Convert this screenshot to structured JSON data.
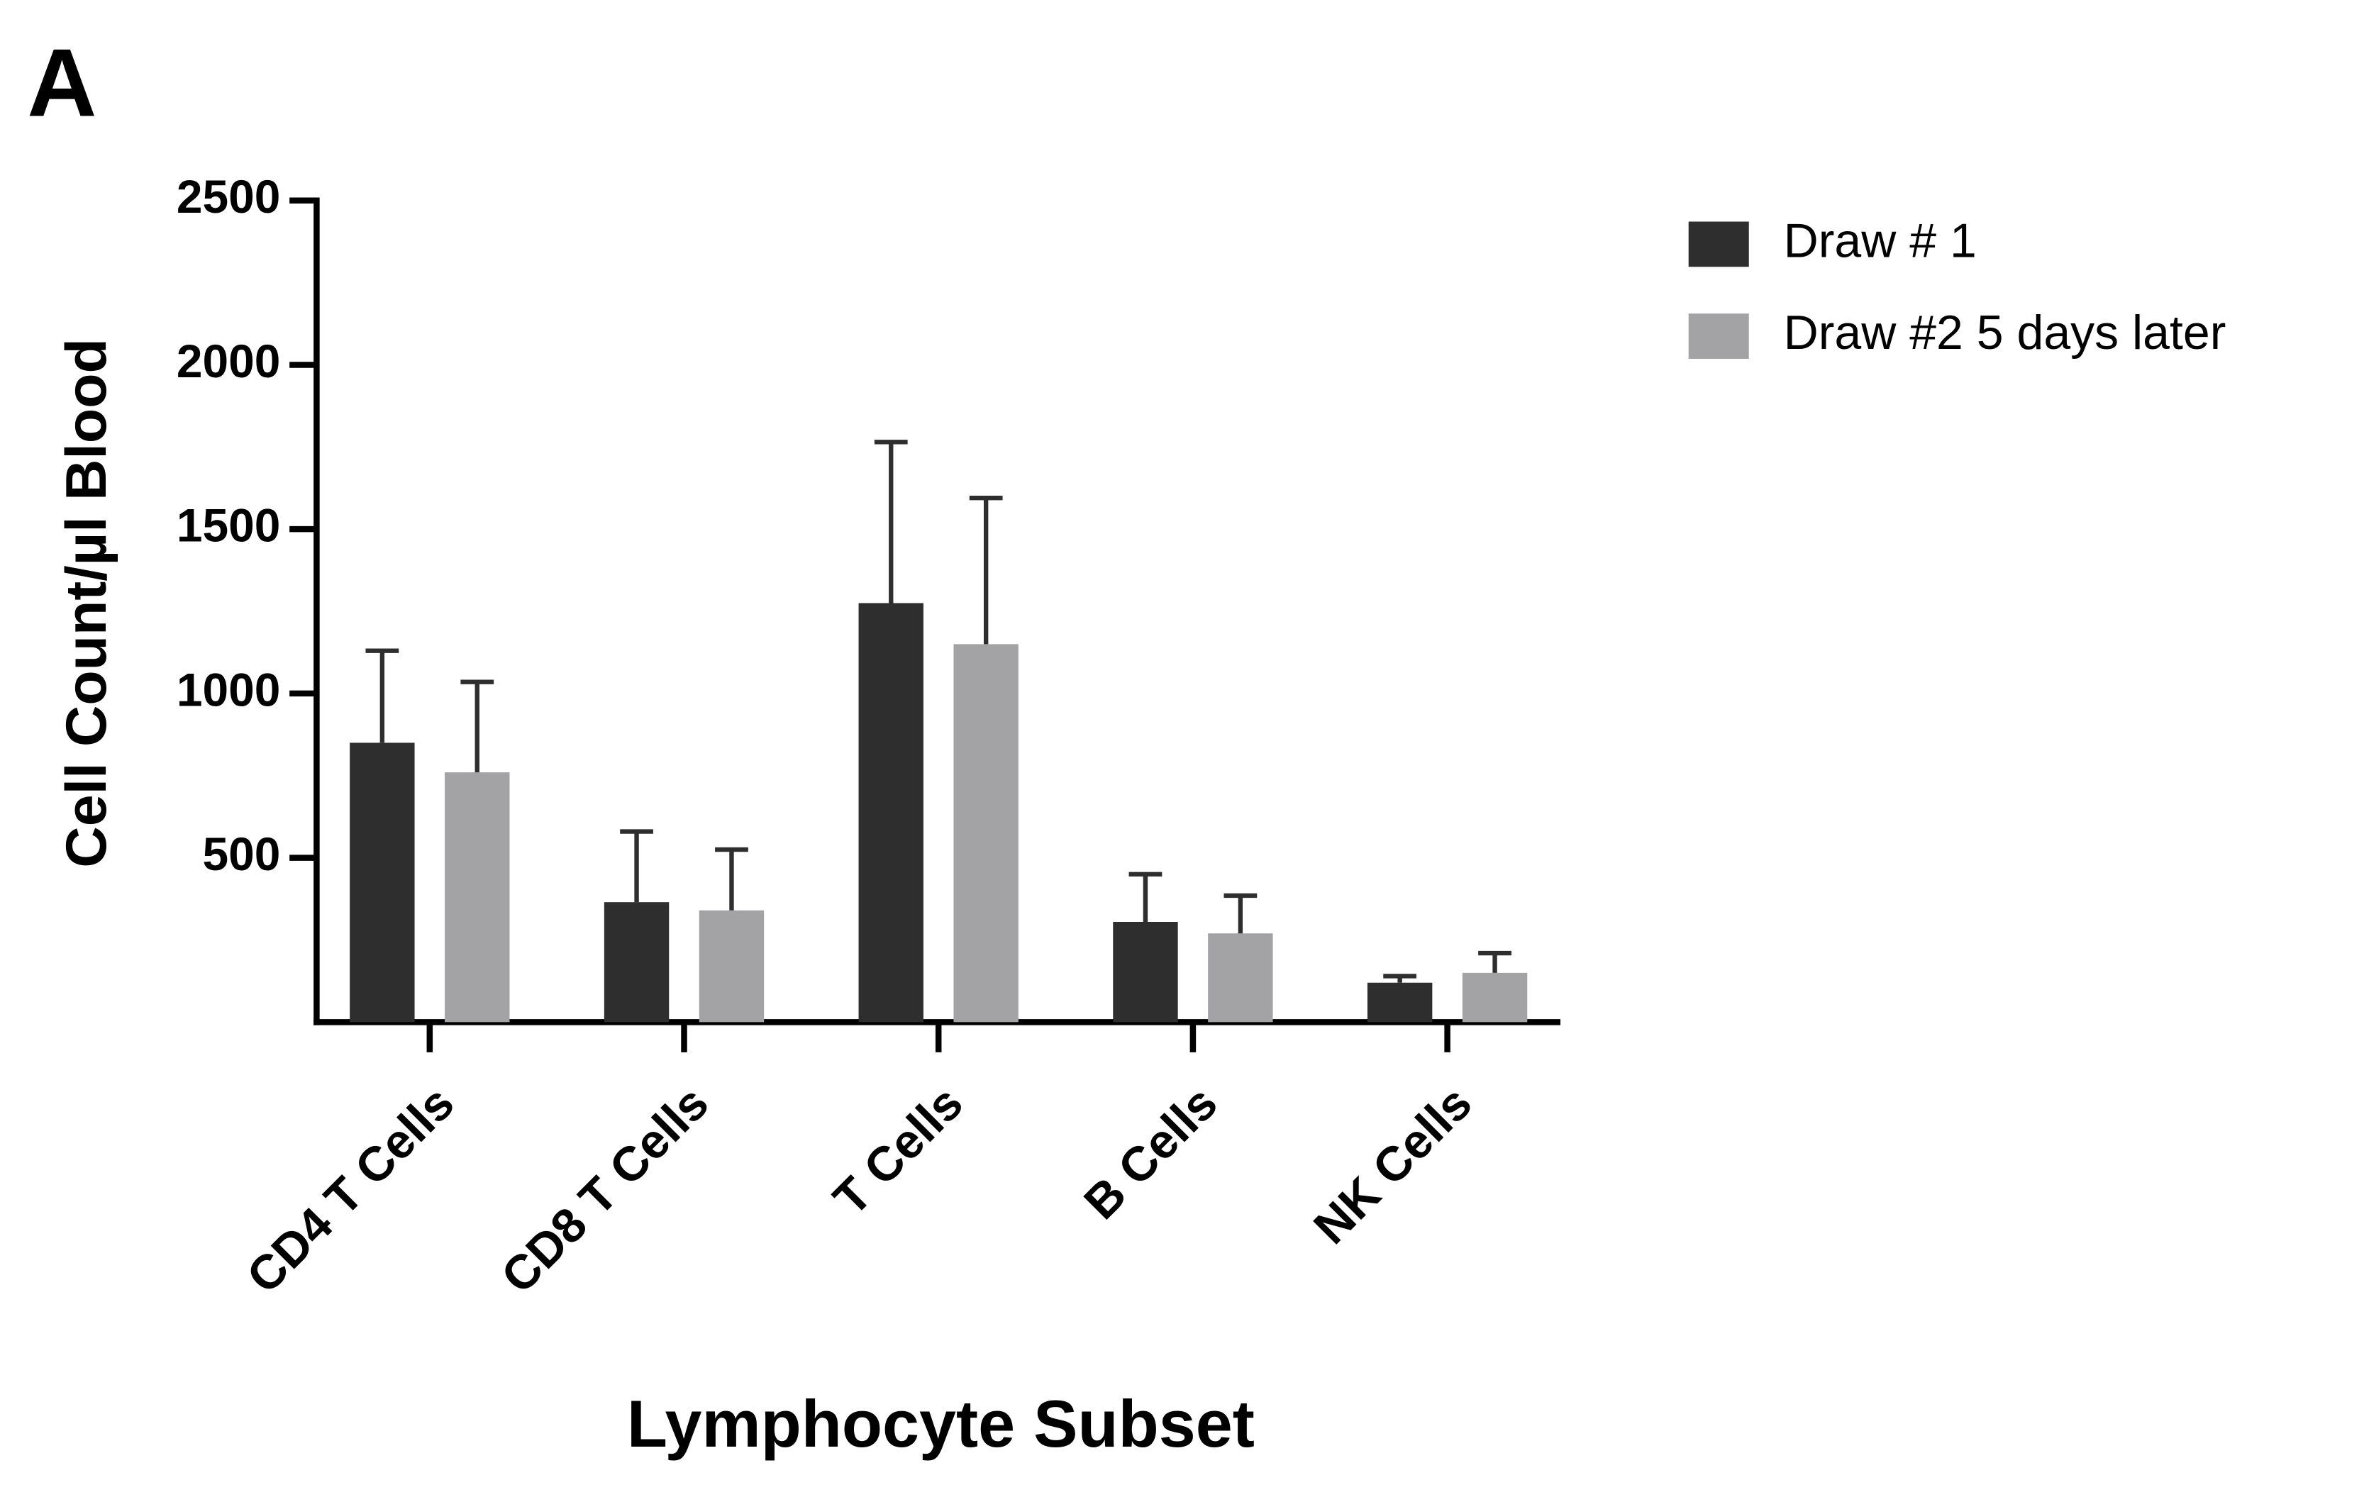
{
  "chart_data": {
    "type": "bar",
    "panel_label": "A",
    "xlabel": "Lymphocyte Subset",
    "ylabel": "Cell Count/µl Blood",
    "categories": [
      "CD4 T Cells",
      "CD8 T Cells",
      "T Cells",
      "B Cells",
      "NK Cells"
    ],
    "series": [
      {
        "name": "Draw # 1",
        "color": "#2e2e2e",
        "values": [
          850,
          365,
          1275,
          305,
          120
        ],
        "errors": [
          280,
          215,
          490,
          145,
          20
        ]
      },
      {
        "name": "Draw #2 5 days later",
        "color": "#a3a3a6",
        "values": [
          760,
          340,
          1150,
          270,
          150
        ],
        "errors": [
          275,
          185,
          445,
          115,
          60
        ]
      }
    ],
    "ylim": [
      0,
      2500
    ],
    "yticks": [
      500,
      1000,
      1500,
      2000,
      2500
    ],
    "grid": false,
    "legend": "right"
  }
}
